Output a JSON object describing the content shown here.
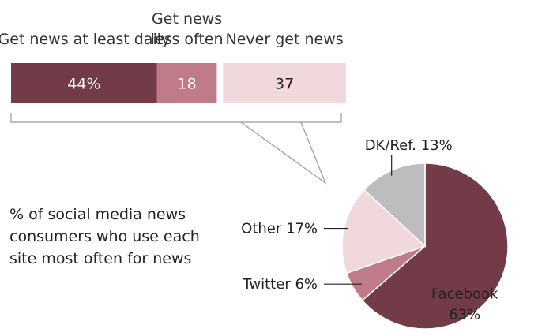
{
  "chart_data": [
    {
      "type": "bar",
      "orientation": "horizontal-stacked",
      "unit": "%",
      "categories": [
        "Get news at least daily",
        "Get news less often",
        "Never get news"
      ],
      "header_lines": [
        [
          "Get news at least daily"
        ],
        [
          "Get news",
          "less often"
        ],
        [
          "Never get news"
        ]
      ],
      "values": [
        44,
        18,
        37
      ],
      "value_labels": [
        "44%",
        "18",
        "37"
      ],
      "colors": [
        "#733a48",
        "#c07b88",
        "#f0d8dc"
      ],
      "label_colors": [
        "#ffffff",
        "#ffffff",
        "#222222"
      ]
    },
    {
      "type": "pie",
      "description_lines": [
        "% of social media news",
        "consumers who use each",
        "site most often for news"
      ],
      "slices": [
        {
          "name": "Facebook",
          "value": 63,
          "label_lines": [
            "Facebook",
            "63%"
          ],
          "color": "#733a48"
        },
        {
          "name": "Twitter",
          "value": 6,
          "label_lines": [
            "Twitter 6%"
          ],
          "color": "#c07b88"
        },
        {
          "name": "Other",
          "value": 17,
          "label_lines": [
            "Other 17%"
          ],
          "color": "#f0d8dc"
        },
        {
          "name": "DK/Ref.",
          "value": 13,
          "label_lines": [
            "DK/Ref. 13%"
          ],
          "color": "#bdbdbd"
        }
      ]
    }
  ]
}
